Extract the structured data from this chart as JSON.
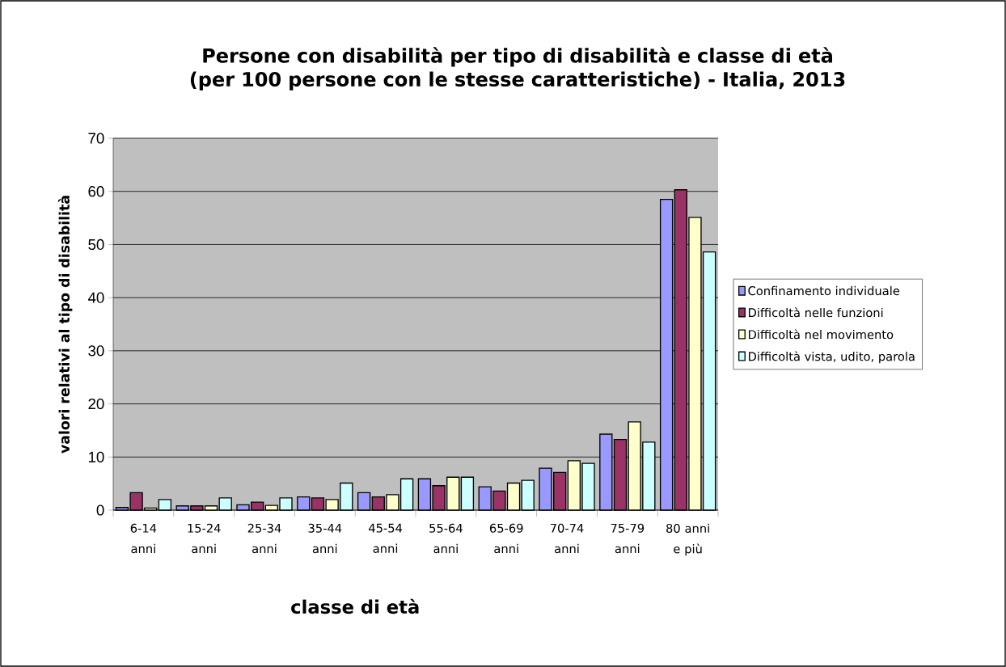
{
  "chart_data": {
    "type": "bar",
    "title": "Persone con disabilità per tipo di disabilità e classe di età (per 100 persone con le stesse caratteristiche) - Italia, 2013",
    "xlabel": "classe di età",
    "ylabel": "valori relativi al tipo di disabilità",
    "categories": [
      "6-14 anni",
      "15-24 anni",
      "25-34 anni",
      "35-44 anni",
      "45-54 anni",
      "55-64 anni",
      "65-69 anni",
      "70-74 anni",
      "75-79 anni",
      "80 anni e più"
    ],
    "series": [
      {
        "name": "Confinamento individuale",
        "color": "#9999ff",
        "values": [
          0.5,
          0.8,
          1.0,
          2.5,
          3.3,
          5.9,
          4.4,
          7.9,
          14.3,
          58.5
        ]
      },
      {
        "name": "Difficoltà nelle funzioni",
        "color": "#993366",
        "values": [
          3.3,
          0.8,
          1.5,
          2.3,
          2.5,
          4.6,
          3.6,
          7.1,
          13.3,
          60.3
        ]
      },
      {
        "name": "Difficoltà nel movimento",
        "color": "#ffffcc",
        "values": [
          0.4,
          0.8,
          0.9,
          2.0,
          2.9,
          6.2,
          5.1,
          9.3,
          16.6,
          55.1
        ]
      },
      {
        "name": "Difficoltà vista, udito, parola",
        "color": "#ccffff",
        "values": [
          2.0,
          2.3,
          2.3,
          5.1,
          5.9,
          6.2,
          5.6,
          8.8,
          12.8,
          48.6
        ]
      }
    ],
    "ylim": [
      0,
      70
    ],
    "yticks": [
      0,
      10,
      20,
      30,
      40,
      50,
      60,
      70
    ],
    "grid": "y",
    "legend": "right"
  }
}
